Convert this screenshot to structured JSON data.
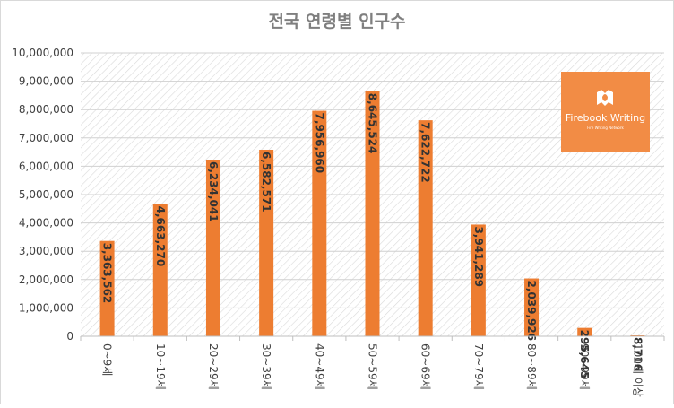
{
  "chart_data": {
    "type": "bar",
    "title": "전국 연령별 인구수",
    "categories": [
      "0~9세",
      "10~19세",
      "20~29세",
      "30~39세",
      "40~49세",
      "50~59세",
      "60~69세",
      "70~79세",
      "80~89세",
      "90~99세",
      "100세 이상"
    ],
    "values": [
      3363562,
      4663270,
      6234041,
      6582571,
      7956960,
      8645524,
      7622722,
      3941289,
      2039926,
      295645,
      8716
    ],
    "value_labels": [
      "3,363,562",
      "4,663,270",
      "6,234,041",
      "6,582,571",
      "7,956,960",
      "8,645,524",
      "7,622,722",
      "3,941,289",
      "2,039,926",
      "295,645",
      "8,716"
    ],
    "ylim": [
      0,
      10000000
    ],
    "yticks": [
      "0",
      "1,000,000",
      "2,000,000",
      "3,000,000",
      "4,000,000",
      "5,000,000",
      "6,000,000",
      "7,000,000",
      "8,000,000",
      "9,000,000",
      "10,000,000"
    ],
    "grid": true,
    "legend": "none",
    "bar_color": "#ED7D31"
  },
  "watermark": {
    "name": "Firebook Writing",
    "tagline": "Fire Writing Network",
    "color": "#F28C45"
  }
}
